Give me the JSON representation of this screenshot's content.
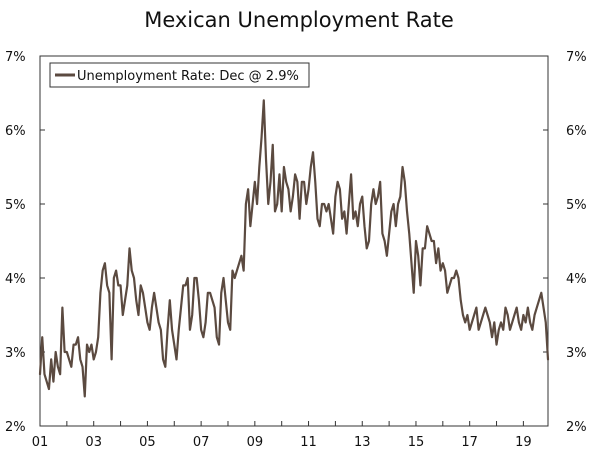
{
  "chart_data": {
    "type": "line",
    "title": "Mexican Unemployment Rate",
    "xlabel": "",
    "ylabel": "",
    "x_tick_labels": [
      "01",
      "03",
      "05",
      "07",
      "09",
      "11",
      "13",
      "15",
      "17",
      "19"
    ],
    "y_tick_labels": [
      "2%",
      "3%",
      "4%",
      "5%",
      "6%",
      "7%"
    ],
    "ylim": [
      2,
      7
    ],
    "x_range": [
      "2001-01",
      "2019-12"
    ],
    "grid": false,
    "legend_position": "top-left",
    "series": [
      {
        "name": "Unemployment Rate: Dec @ 2.9%",
        "color": "#5b4a40",
        "frequency": "monthly",
        "start": "2001-01",
        "values": [
          2.7,
          3.2,
          2.7,
          2.6,
          2.5,
          2.9,
          2.6,
          3.0,
          2.8,
          2.7,
          3.6,
          3.0,
          3.0,
          2.9,
          2.8,
          3.1,
          3.1,
          3.2,
          2.9,
          2.8,
          2.4,
          3.1,
          3.0,
          3.1,
          2.9,
          3.0,
          3.2,
          3.8,
          4.1,
          4.2,
          3.9,
          3.8,
          2.9,
          4.0,
          4.1,
          3.9,
          3.9,
          3.5,
          3.7,
          3.9,
          4.4,
          4.1,
          4.0,
          3.7,
          3.5,
          3.9,
          3.8,
          3.6,
          3.4,
          3.3,
          3.6,
          3.8,
          3.6,
          3.4,
          3.3,
          2.9,
          2.8,
          3.3,
          3.7,
          3.3,
          3.1,
          2.9,
          3.3,
          3.6,
          3.9,
          3.9,
          4.0,
          3.3,
          3.5,
          4.0,
          4.0,
          3.7,
          3.3,
          3.2,
          3.4,
          3.8,
          3.8,
          3.7,
          3.6,
          3.2,
          3.1,
          3.8,
          4.0,
          3.7,
          3.4,
          3.3,
          4.1,
          4.0,
          4.1,
          4.2,
          4.3,
          4.1,
          5.0,
          5.2,
          4.7,
          5.0,
          5.3,
          5.0,
          5.5,
          5.9,
          6.4,
          5.6,
          5.0,
          5.3,
          5.8,
          4.9,
          5.0,
          5.4,
          4.9,
          5.5,
          5.3,
          5.2,
          4.9,
          5.1,
          5.4,
          5.3,
          4.8,
          5.3,
          5.3,
          5.0,
          5.2,
          5.5,
          5.7,
          5.3,
          4.8,
          4.7,
          5.0,
          5.0,
          4.9,
          5.0,
          4.8,
          4.6,
          5.1,
          5.3,
          5.2,
          4.8,
          4.9,
          4.6,
          5.0,
          5.4,
          4.8,
          4.9,
          4.7,
          5.0,
          5.1,
          4.7,
          4.4,
          4.5,
          5.0,
          5.2,
          5.0,
          5.1,
          5.3,
          4.6,
          4.5,
          4.3,
          4.6,
          4.9,
          5.0,
          4.7,
          5.0,
          5.1,
          5.5,
          5.3,
          4.9,
          4.6,
          4.2,
          3.8,
          4.5,
          4.3,
          3.9,
          4.4,
          4.4,
          4.7,
          4.6,
          4.5,
          4.5,
          4.2,
          4.4,
          4.1,
          4.2,
          4.1,
          3.8,
          3.9,
          4.0,
          4.0,
          4.1,
          4.0,
          3.7,
          3.5,
          3.4,
          3.5,
          3.3,
          3.4,
          3.5,
          3.6,
          3.3,
          3.4,
          3.5,
          3.6,
          3.5,
          3.4,
          3.2,
          3.4,
          3.1,
          3.3,
          3.4,
          3.3,
          3.6,
          3.5,
          3.3,
          3.4,
          3.5,
          3.6,
          3.4,
          3.3,
          3.5,
          3.4,
          3.6,
          3.4,
          3.3,
          3.5,
          3.6,
          3.7,
          3.8,
          3.6,
          3.4,
          2.9
        ]
      }
    ]
  }
}
